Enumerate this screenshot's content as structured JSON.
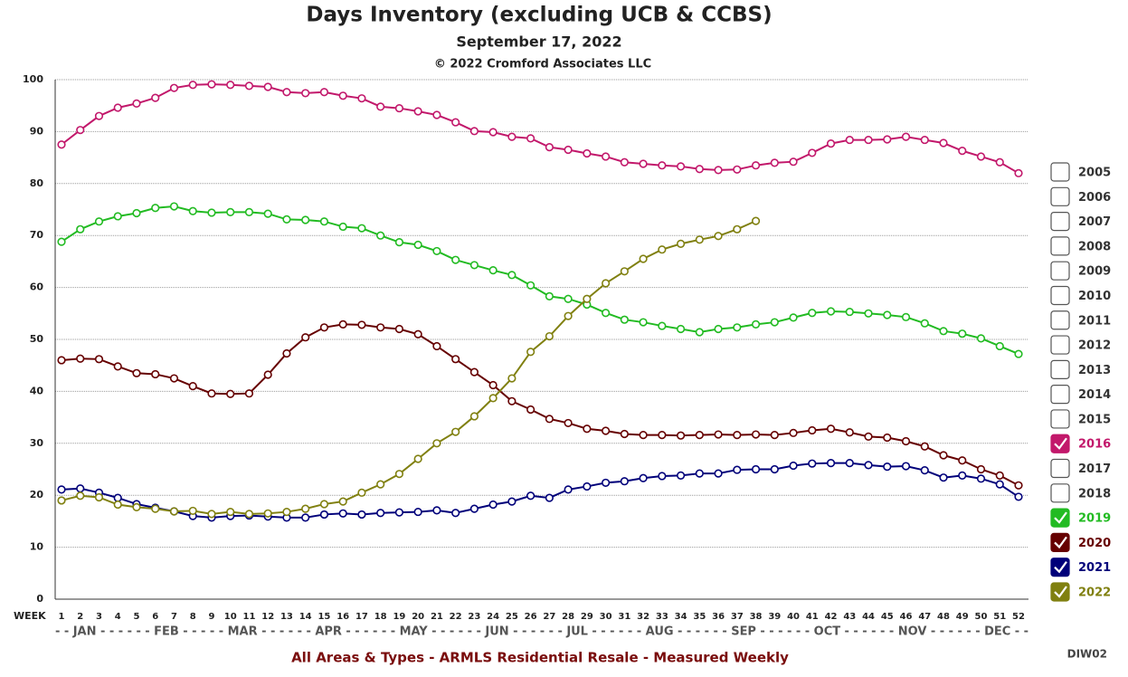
{
  "chart_data": {
    "type": "line",
    "title": "Days Inventory (excluding UCB & CCBS)",
    "subtitle": "September 17, 2022",
    "copyright": "© 2022 Cromford Associates LLC",
    "x_label": "WEEK",
    "month_row": "- - JAN - - - - - - FEB - - - - - MAR - - - - - - APR - - - - - - MAY - - - - - - JUN - - - - - - JUL - - - - - - AUG - - - - - - SEP - - - - - - OCT - - - - - - NOV - - - - - - DEC - -",
    "footer": "All Areas & Types - ARMLS Residential Resale - Measured Weekly",
    "code": "DIW02",
    "x": [
      1,
      2,
      3,
      4,
      5,
      6,
      7,
      8,
      9,
      10,
      11,
      12,
      13,
      14,
      15,
      16,
      17,
      18,
      19,
      20,
      21,
      22,
      23,
      24,
      25,
      26,
      27,
      28,
      29,
      30,
      31,
      32,
      33,
      34,
      35,
      36,
      37,
      38,
      39,
      40,
      41,
      42,
      43,
      44,
      45,
      46,
      47,
      48,
      49,
      50,
      51,
      52
    ],
    "xlim": [
      1,
      52
    ],
    "ylim": [
      0,
      100
    ],
    "yticks": [
      0,
      10,
      20,
      30,
      40,
      50,
      60,
      70,
      80,
      90,
      100
    ],
    "grid": true,
    "legend": "right",
    "series": [
      {
        "name": "2005",
        "checked": false
      },
      {
        "name": "2006",
        "checked": false
      },
      {
        "name": "2007",
        "checked": false
      },
      {
        "name": "2008",
        "checked": false
      },
      {
        "name": "2009",
        "checked": false
      },
      {
        "name": "2010",
        "checked": false
      },
      {
        "name": "2011",
        "checked": false
      },
      {
        "name": "2012",
        "checked": false
      },
      {
        "name": "2013",
        "checked": false
      },
      {
        "name": "2014",
        "checked": false
      },
      {
        "name": "2015",
        "checked": false
      },
      {
        "name": "2016",
        "checked": true,
        "color": "#c2186b",
        "values": [
          87.5,
          90.3,
          93,
          94.6,
          95.4,
          96.5,
          98.4,
          99,
          99.1,
          99,
          98.8,
          98.6,
          97.6,
          97.4,
          97.6,
          96.9,
          96.4,
          94.8,
          94.5,
          93.9,
          93.2,
          91.8,
          90.1,
          89.9,
          89,
          88.7,
          87,
          86.5,
          85.8,
          85.2,
          84.1,
          83.8,
          83.5,
          83.3,
          82.8,
          82.6,
          82.7,
          83.5,
          84,
          84.2,
          85.9,
          87.7,
          88.4,
          88.4,
          88.5,
          89,
          88.4,
          87.8,
          86.3,
          85.2,
          84.1,
          82
        ]
      },
      {
        "name": "2017",
        "checked": false
      },
      {
        "name": "2018",
        "checked": false
      },
      {
        "name": "2019",
        "checked": true,
        "color": "#22bb22",
        "values": [
          68.8,
          71.2,
          72.7,
          73.7,
          74.3,
          75.3,
          75.6,
          74.7,
          74.4,
          74.5,
          74.5,
          74.2,
          73.1,
          73,
          72.7,
          71.7,
          71.4,
          70,
          68.7,
          68.2,
          67,
          65.3,
          64.3,
          63.3,
          62.4,
          60.4,
          58.3,
          57.8,
          56.7,
          55.1,
          53.8,
          53.3,
          52.6,
          52,
          51.4,
          52,
          52.3,
          52.9,
          53.3,
          54.2,
          55.1,
          55.4,
          55.3,
          55,
          54.7,
          54.3,
          53.1,
          51.6,
          51.1,
          50.2,
          48.7,
          47.2
        ]
      },
      {
        "name": "2020",
        "checked": true,
        "color": "#660000",
        "values": [
          46,
          46.3,
          46.2,
          44.8,
          43.5,
          43.3,
          42.5,
          41,
          39.6,
          39.5,
          39.6,
          43.2,
          47.3,
          50.4,
          52.3,
          52.9,
          52.8,
          52.3,
          52,
          51,
          48.7,
          46.2,
          43.7,
          41.2,
          38.1,
          36.5,
          34.7,
          33.9,
          32.8,
          32.4,
          31.8,
          31.6,
          31.6,
          31.5,
          31.6,
          31.7,
          31.6,
          31.7,
          31.6,
          32,
          32.5,
          32.8,
          32.1,
          31.3,
          31.1,
          30.4,
          29.4,
          27.7,
          26.7,
          25,
          23.8,
          21.9
        ]
      },
      {
        "name": "2021",
        "checked": true,
        "color": "#00007a",
        "values": [
          21.1,
          21.3,
          20.5,
          19.5,
          18.3,
          17.6,
          16.9,
          16,
          15.7,
          16,
          16.1,
          15.9,
          15.7,
          15.7,
          16.3,
          16.5,
          16.3,
          16.6,
          16.7,
          16.8,
          17.1,
          16.6,
          17.4,
          18.2,
          18.8,
          19.9,
          19.5,
          21.1,
          21.7,
          22.4,
          22.7,
          23.3,
          23.7,
          23.8,
          24.2,
          24.2,
          24.9,
          25,
          25,
          25.7,
          26.1,
          26.2,
          26.2,
          25.8,
          25.5,
          25.6,
          24.8,
          23.4,
          23.8,
          23.2,
          22.1,
          19.7
        ]
      },
      {
        "name": "2022",
        "checked": true,
        "color": "#808010",
        "values": [
          19,
          19.9,
          19.6,
          18.2,
          17.7,
          17.4,
          16.9,
          17,
          16.4,
          16.8,
          16.4,
          16.5,
          16.8,
          17.4,
          18.3,
          18.8,
          20.5,
          22.1,
          24.1,
          27,
          30,
          32.2,
          35.2,
          38.7,
          42.5,
          47.6,
          50.6,
          54.5,
          57.8,
          60.8,
          63.1,
          65.5,
          67.3,
          68.4,
          69.2,
          69.9,
          71.2,
          72.8,
          null,
          null,
          null,
          null,
          null,
          null,
          null,
          null,
          null,
          null,
          null,
          null,
          null,
          null
        ]
      }
    ]
  }
}
